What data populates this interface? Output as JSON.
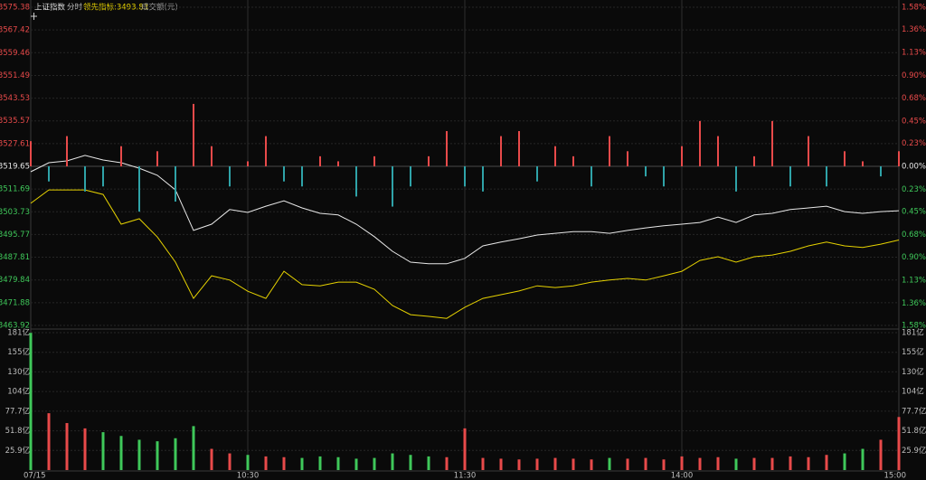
{
  "chart_data": [
    {
      "type": "line",
      "mode": "分时",
      "x": [
        0,
        5,
        10,
        15,
        20,
        25,
        30,
        35,
        40,
        45,
        50,
        55,
        60,
        65,
        70,
        75,
        80,
        85,
        90,
        95,
        100,
        105,
        110,
        115,
        120,
        125,
        130,
        135,
        140,
        145,
        150,
        155,
        160,
        165,
        170,
        175,
        180,
        185,
        190,
        195,
        200,
        205,
        210,
        215,
        220,
        225,
        230,
        235,
        240
      ],
      "xlim": [
        0,
        240
      ],
      "ylim": [
        3463.92,
        3575.38
      ],
      "yticks": [
        3463.92,
        3471.88,
        3479.84,
        3487.81,
        3495.77,
        3503.73,
        3511.69,
        3519.65,
        3527.61,
        3535.57,
        3543.53,
        3551.49,
        3559.46,
        3567.42,
        3575.38
      ],
      "y2lim": [
        -1.58,
        1.58
      ],
      "y2ticks": [
        {
          "value": -1.58,
          "label": "1.58%"
        },
        {
          "value": -1.36,
          "label": "1.36%"
        },
        {
          "value": -1.13,
          "label": "1.13%"
        },
        {
          "value": -0.9,
          "label": "0.90%"
        },
        {
          "value": -0.68,
          "label": "0.68%"
        },
        {
          "value": -0.45,
          "label": "0.45%"
        },
        {
          "value": -0.23,
          "label": "0.23%"
        },
        {
          "value": 0,
          "label": "0.00%"
        },
        {
          "value": 0.23,
          "label": "0.23%"
        },
        {
          "value": 0.45,
          "label": "0.45%"
        },
        {
          "value": 0.68,
          "label": "0.68%"
        },
        {
          "value": 0.9,
          "label": "0.90%"
        },
        {
          "value": 1.13,
          "label": "1.13%"
        },
        {
          "value": 1.36,
          "label": "1.36%"
        },
        {
          "value": 1.58,
          "label": "1.58%"
        }
      ],
      "up_color": "#e84a4a",
      "down_color": "#2fa3a8",
      "flat_color": "#e8e8e8",
      "grid": true,
      "series": [
        {
          "name": "上证指数",
          "color": "#e8e8e8",
          "values": [
            3517.75,
            3520.91,
            3521.54,
            3523.48,
            3521.86,
            3520.91,
            3519.0,
            3516.5,
            3511.4,
            3497.2,
            3499.4,
            3504.5,
            3503.5,
            3505.7,
            3507.6,
            3505.1,
            3503.2,
            3502.6,
            3499.4,
            3495.0,
            3489.9,
            3486.1,
            3485.5,
            3485.5,
            3487.4,
            3491.8,
            3493.1,
            3494.3,
            3495.6,
            3496.2,
            3496.8,
            3496.8,
            3496.2,
            3497.2,
            3498.1,
            3498.8,
            3499.4,
            3500.0,
            3501.9,
            3500.0,
            3502.6,
            3503.2,
            3504.5,
            3505.1,
            3505.7,
            3503.8,
            3503.2,
            3503.8,
            3504.1
          ]
        },
        {
          "name": "领先指标:3493.83",
          "color": "#e6d200",
          "values": [
            3506.7,
            3511.4,
            3511.4,
            3511.4,
            3509.8,
            3499.4,
            3501.3,
            3494.9,
            3486.1,
            3473.4,
            3481.3,
            3479.8,
            3475.9,
            3473.4,
            3482.9,
            3478.2,
            3477.8,
            3479.1,
            3479.1,
            3476.6,
            3470.9,
            3467.7,
            3467.1,
            3466.4,
            3470.3,
            3473.4,
            3474.7,
            3476.0,
            3477.8,
            3477.2,
            3477.8,
            3479.1,
            3479.8,
            3480.4,
            3479.8,
            3481.3,
            3482.9,
            3486.7,
            3488.0,
            3486.1,
            3488.0,
            3488.6,
            3489.9,
            3491.8,
            3493.1,
            3491.8,
            3491.2,
            3492.4,
            3493.83
          ]
        },
        {
          "type": "bar",
          "axis": "y2",
          "values": [
            0.25,
            -0.15,
            0.3,
            -0.25,
            -0.2,
            0.2,
            -0.45,
            0.15,
            -0.35,
            0.62,
            0.2,
            -0.2,
            0.05,
            0.3,
            -0.15,
            -0.2,
            0.1,
            0.05,
            -0.3,
            0.1,
            -0.4,
            -0.2,
            0.1,
            0.35,
            -0.2,
            -0.25,
            0.3,
            0.35,
            -0.15,
            0.2,
            0.1,
            -0.2,
            0.3,
            0.15,
            -0.1,
            -0.2,
            0.2,
            0.45,
            0.3,
            -0.25,
            0.1,
            0.45,
            -0.2,
            0.3,
            -0.2,
            0.15,
            0.05,
            -0.1,
            0.15
          ]
        }
      ]
    },
    {
      "type": "bar",
      "title": "成交额(元)",
      "x": [
        0,
        5,
        10,
        15,
        20,
        25,
        30,
        35,
        40,
        45,
        50,
        55,
        60,
        65,
        70,
        75,
        80,
        85,
        90,
        95,
        100,
        105,
        110,
        115,
        120,
        125,
        130,
        135,
        140,
        145,
        150,
        155,
        160,
        165,
        170,
        175,
        180,
        185,
        190,
        195,
        200,
        205,
        210,
        215,
        220,
        225,
        230,
        235,
        240
      ],
      "xlim": [
        0,
        240
      ],
      "xticks": [
        {
          "value": 0,
          "label": "07/15"
        },
        {
          "value": 60,
          "label": "10:30"
        },
        {
          "value": 120,
          "label": "11:30"
        },
        {
          "value": 180,
          "label": "14:00"
        },
        {
          "value": 240,
          "label": "15:00"
        }
      ],
      "ylim": [
        0,
        181.3
      ],
      "yticks": [
        {
          "value": 25.9,
          "label": "25.9亿"
        },
        {
          "value": 51.8,
          "label": "51.8亿"
        },
        {
          "value": 77.7,
          "label": "77.7亿"
        },
        {
          "value": 103.6,
          "label": "104亿"
        },
        {
          "value": 129.5,
          "label": "130亿"
        },
        {
          "value": 155.4,
          "label": "155亿"
        },
        {
          "value": 181.3,
          "label": "181亿"
        }
      ],
      "up_color": "#e84a4a",
      "down_color": "#3fc85a",
      "series": [
        {
          "values": [
            181,
            75,
            62,
            55,
            50,
            45,
            40,
            38,
            42,
            58,
            28,
            22,
            20,
            18,
            17,
            16,
            18,
            17,
            15,
            16,
            22,
            20,
            18,
            17,
            55,
            16,
            15,
            14,
            15,
            16,
            15,
            14,
            16,
            15,
            16,
            14,
            18,
            16,
            17,
            15,
            16,
            16,
            18,
            17,
            20,
            22,
            28,
            40,
            70
          ]
        }
      ]
    }
  ]
}
